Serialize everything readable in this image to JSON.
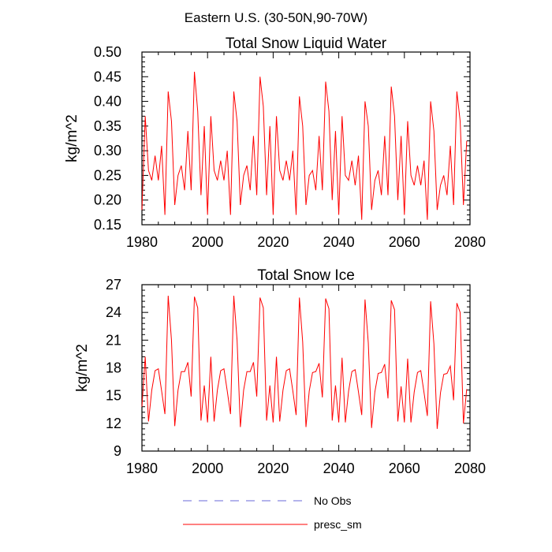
{
  "figure_title": "Eastern U.S. (30-50N,90-70W)",
  "colors": {
    "model": "#ff0000",
    "obs": "#6a6ad8",
    "axis": "#000000"
  },
  "legend": {
    "items": [
      {
        "label": "No Obs",
        "style": "dashed",
        "color": "#6a6ad8"
      },
      {
        "label": "presc_sm",
        "style": "solid",
        "color": "#ff0000"
      }
    ]
  },
  "chart_data": [
    {
      "type": "line",
      "title": "Total Snow Liquid Water",
      "xlabel": "",
      "ylabel": "kg/m^2",
      "xlim": [
        1980,
        2080
      ],
      "ylim": [
        0.15,
        0.5
      ],
      "xticks": [
        1980,
        2000,
        2020,
        2040,
        2060,
        2080
      ],
      "yticks": [
        0.15,
        0.2,
        0.25,
        0.3,
        0.35,
        0.4,
        0.45,
        0.5
      ],
      "ytick_labels": [
        "0.15",
        "0.20",
        "0.25",
        "0.30",
        "0.35",
        "0.40",
        "0.45",
        "0.50"
      ],
      "series": [
        {
          "name": "presc_sm",
          "x_start": 1980,
          "x_step": 1,
          "values": [
            0.18,
            0.37,
            0.26,
            0.24,
            0.29,
            0.24,
            0.31,
            0.17,
            0.42,
            0.36,
            0.19,
            0.25,
            0.27,
            0.22,
            0.34,
            0.22,
            0.46,
            0.38,
            0.21,
            0.35,
            0.17,
            0.37,
            0.26,
            0.24,
            0.28,
            0.24,
            0.3,
            0.17,
            0.42,
            0.36,
            0.19,
            0.25,
            0.27,
            0.22,
            0.33,
            0.21,
            0.45,
            0.39,
            0.21,
            0.35,
            0.17,
            0.37,
            0.26,
            0.24,
            0.28,
            0.24,
            0.3,
            0.17,
            0.41,
            0.35,
            0.19,
            0.25,
            0.26,
            0.22,
            0.33,
            0.22,
            0.44,
            0.38,
            0.2,
            0.34,
            0.17,
            0.37,
            0.25,
            0.24,
            0.28,
            0.23,
            0.29,
            0.16,
            0.4,
            0.35,
            0.18,
            0.24,
            0.26,
            0.21,
            0.33,
            0.21,
            0.43,
            0.37,
            0.2,
            0.33,
            0.17,
            0.36,
            0.25,
            0.23,
            0.27,
            0.23,
            0.28,
            0.16,
            0.4,
            0.34,
            0.18,
            0.23,
            0.25,
            0.21,
            0.31,
            0.19,
            0.42,
            0.36,
            0.19,
            0.32
          ]
        }
      ]
    },
    {
      "type": "line",
      "title": "Total Snow Ice",
      "xlabel": "",
      "ylabel": "kg/m^2",
      "xlim": [
        1980,
        2080
      ],
      "ylim": [
        9,
        27
      ],
      "xticks": [
        1980,
        2000,
        2020,
        2040,
        2060,
        2080
      ],
      "yticks": [
        9,
        12,
        15,
        18,
        21,
        24,
        27
      ],
      "ytick_labels": [
        "9",
        "12",
        "15",
        "18",
        "21",
        "24",
        "27"
      ],
      "series": [
        {
          "name": "presc_sm",
          "x_start": 1980,
          "x_step": 1,
          "values": [
            13.8,
            19.2,
            12.2,
            15.6,
            17.7,
            17.9,
            15.5,
            13.0,
            25.8,
            21.0,
            11.7,
            15.6,
            17.6,
            17.6,
            18.6,
            14.9,
            25.7,
            24.5,
            12.3,
            16.1,
            12.1,
            19.2,
            12.2,
            15.6,
            17.7,
            17.9,
            15.5,
            13.0,
            25.8,
            21.0,
            11.6,
            15.6,
            17.6,
            17.6,
            18.6,
            14.9,
            25.6,
            24.5,
            12.3,
            16.1,
            12.1,
            19.2,
            12.2,
            15.6,
            17.7,
            17.9,
            15.5,
            12.9,
            25.6,
            20.8,
            11.6,
            15.5,
            17.5,
            17.6,
            18.5,
            14.8,
            25.5,
            24.4,
            12.3,
            16.1,
            12.1,
            19.1,
            12.1,
            15.5,
            17.6,
            17.8,
            15.4,
            12.9,
            25.4,
            20.7,
            11.5,
            15.4,
            17.4,
            17.5,
            18.4,
            14.7,
            25.3,
            24.3,
            12.2,
            16.0,
            12.1,
            19.0,
            12.1,
            15.4,
            17.5,
            17.7,
            15.3,
            12.8,
            25.2,
            20.6,
            11.4,
            15.3,
            17.3,
            17.4,
            18.2,
            14.5,
            25.0,
            24.0,
            12.0,
            15.7
          ]
        }
      ]
    }
  ]
}
